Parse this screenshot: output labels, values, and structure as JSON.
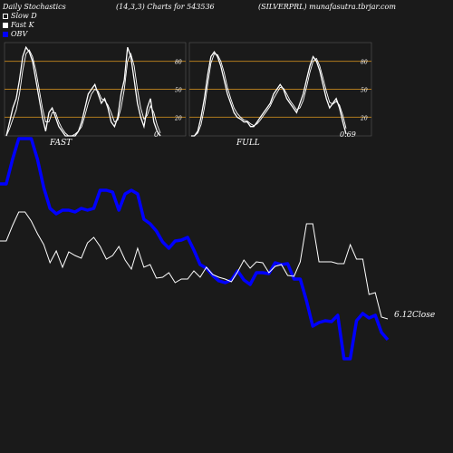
{
  "header": {
    "left": "Daily Stochastics",
    "middle": "(14,3,3) Charts for 543536",
    "right": "(SILVERPRL) munafasutra.tbrjar.com"
  },
  "legend": [
    {
      "label": "Slow  D",
      "color": "#ffffff",
      "fill": "#1a1a1a"
    },
    {
      "label": "Fast  K",
      "color": "#ffffff",
      "fill": "#ffffff"
    },
    {
      "label": "OBV",
      "color": "#0000ff",
      "fill": "#0000ff"
    }
  ],
  "colors": {
    "background": "#1a1a1a",
    "band": "#b07a1e",
    "obv": "#0000ff",
    "price": "#ffffff"
  },
  "chart_data": [
    {
      "type": "line",
      "name_label": "FAST",
      "last_value_label": "0",
      "y_ticks": [
        20,
        50,
        80
      ],
      "ylim": [
        0,
        100
      ],
      "bands": [
        20,
        50,
        80
      ],
      "series": [
        {
          "name": "Fast  K",
          "values": [
            0,
            15,
            30,
            40,
            60,
            85,
            95,
            90,
            80,
            60,
            40,
            20,
            5,
            25,
            30,
            20,
            10,
            5,
            0,
            0,
            0,
            0,
            5,
            15,
            30,
            45,
            50,
            55,
            45,
            35,
            40,
            30,
            15,
            10,
            20,
            45,
            60,
            95,
            85,
            60,
            35,
            20,
            10,
            30,
            40,
            15,
            5,
            0
          ]
        },
        {
          "name": "Slow  D",
          "values": [
            0,
            8,
            18,
            28,
            45,
            70,
            88,
            92,
            85,
            70,
            50,
            30,
            15,
            15,
            25,
            25,
            15,
            8,
            3,
            0,
            0,
            2,
            5,
            10,
            22,
            35,
            45,
            50,
            48,
            40,
            38,
            33,
            25,
            15,
            17,
            30,
            50,
            80,
            88,
            75,
            50,
            30,
            18,
            22,
            32,
            25,
            12,
            3
          ]
        }
      ]
    },
    {
      "type": "line",
      "name_label": "FULL",
      "last_value_label": "0.69",
      "y_ticks": [
        20,
        50,
        80
      ],
      "ylim": [
        0,
        100
      ],
      "bands": [
        20,
        50,
        80
      ],
      "series": [
        {
          "name": "Fast  K",
          "values": [
            0,
            0,
            5,
            20,
            40,
            65,
            85,
            90,
            85,
            75,
            60,
            45,
            35,
            25,
            20,
            18,
            15,
            15,
            10,
            10,
            15,
            20,
            25,
            30,
            35,
            45,
            50,
            55,
            50,
            40,
            35,
            30,
            25,
            35,
            45,
            60,
            75,
            85,
            80,
            70,
            55,
            40,
            30,
            35,
            40,
            30,
            15,
            2
          ]
        },
        {
          "name": "Slow  D",
          "values": [
            0,
            0,
            3,
            12,
            30,
            55,
            78,
            88,
            87,
            80,
            68,
            52,
            40,
            30,
            24,
            20,
            17,
            16,
            13,
            11,
            13,
            17,
            22,
            27,
            32,
            40,
            46,
            52,
            51,
            45,
            38,
            33,
            28,
            30,
            38,
            52,
            68,
            80,
            83,
            75,
            62,
            48,
            36,
            34,
            37,
            33,
            22,
            8
          ]
        }
      ]
    },
    {
      "type": "line",
      "last_value_label": "6.12",
      "price_label": "Close",
      "series": [
        {
          "name": "OBV",
          "values": [
            203,
            203,
            176,
            153,
            153,
            153,
            176,
            207,
            230,
            236,
            232,
            232,
            234,
            230,
            232,
            230,
            210,
            210,
            212,
            232,
            214,
            210,
            214,
            242,
            247,
            255,
            267,
            274,
            266,
            265,
            262,
            276,
            292,
            296,
            304,
            310,
            312,
            309,
            299,
            309,
            314,
            301,
            301,
            302,
            290,
            292,
            291,
            308,
            308,
            332,
            360,
            356,
            354,
            355,
            348,
            396,
            396,
            354,
            346,
            351,
            348,
            367,
            375
          ]
        },
        {
          "name": "Close",
          "values": [
            266,
            266,
            249,
            234,
            234,
            244,
            258,
            270,
            290,
            277,
            295,
            278,
            282,
            285,
            268,
            262,
            272,
            286,
            282,
            272,
            287,
            297,
            274,
            295,
            292,
            307,
            306,
            301,
            312,
            308,
            308,
            299,
            306,
            295,
            303,
            306,
            308,
            311,
            300,
            287,
            296,
            289,
            290,
            301,
            294,
            292,
            304,
            305,
            289,
            247,
            247,
            289,
            289,
            289,
            291,
            291,
            270,
            286,
            286,
            325,
            323,
            350,
            352
          ]
        }
      ]
    }
  ]
}
